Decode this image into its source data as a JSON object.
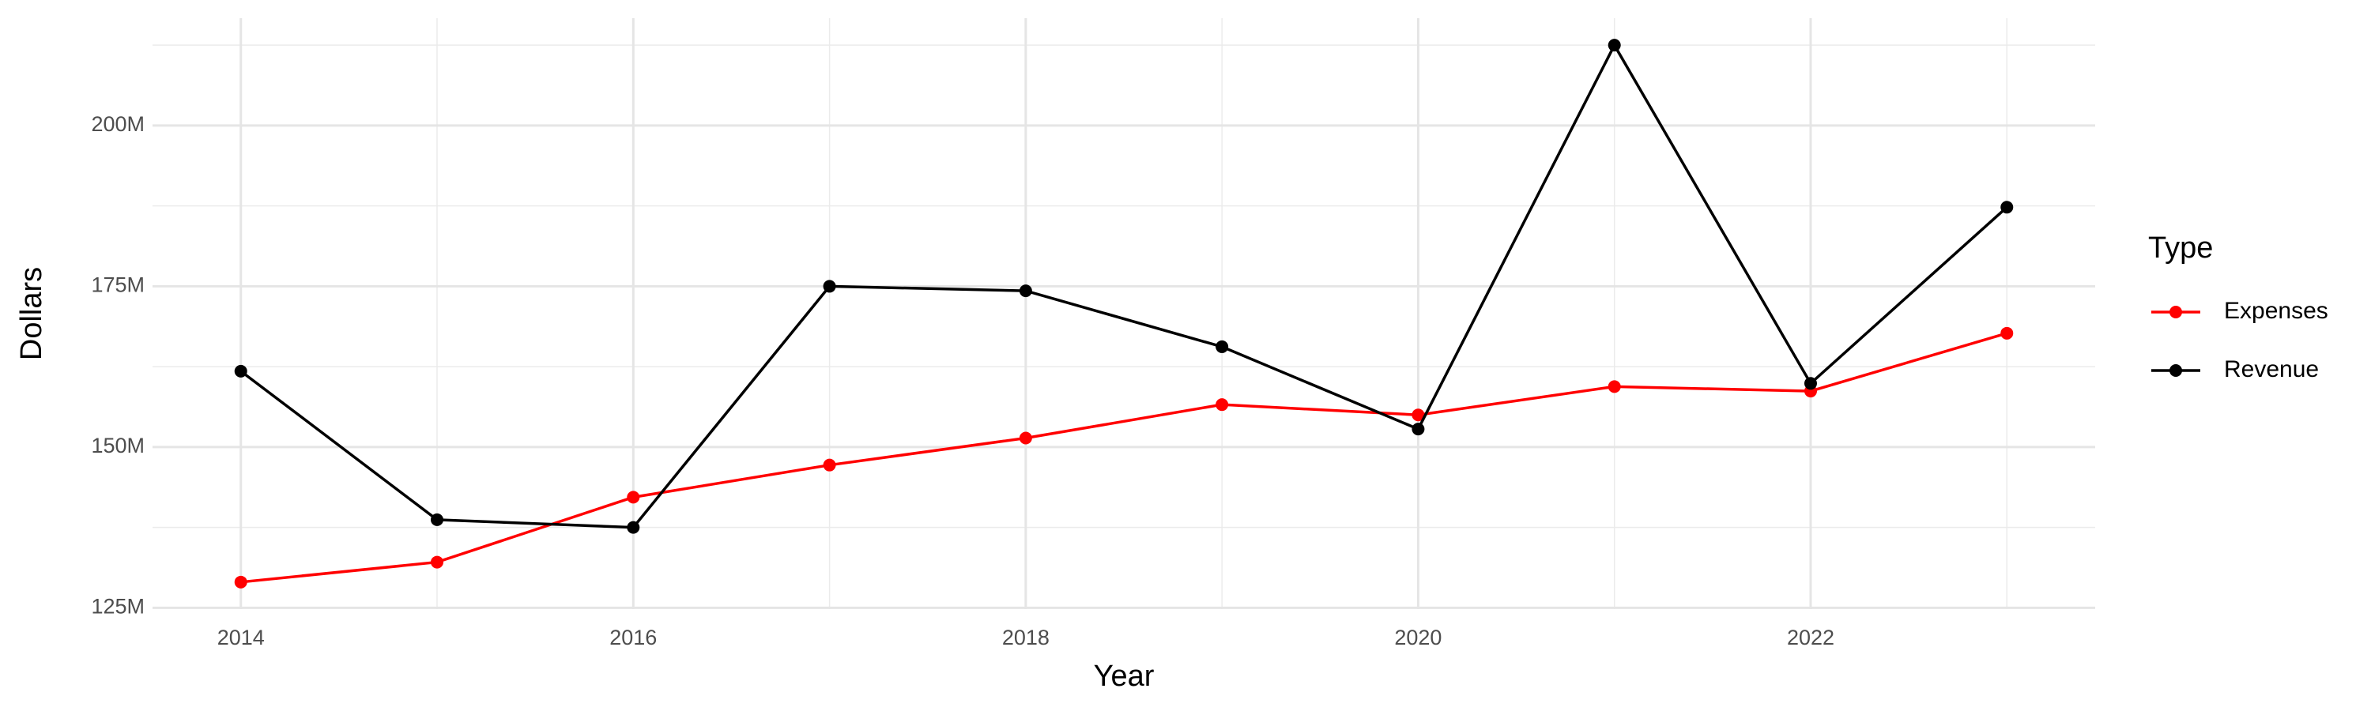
{
  "chart_data": {
    "type": "line",
    "x_label": "Year",
    "y_label": "Dollars",
    "legend_title": "Type",
    "legend_position": "right",
    "x": [
      2014,
      2015,
      2016,
      2017,
      2018,
      2019,
      2020,
      2021,
      2022,
      2023
    ],
    "series": [
      {
        "name": "Expenses",
        "color": "#ff0000",
        "values": [
          129000000,
          132100000,
          142200000,
          147200000,
          151400000,
          156600000,
          155000000,
          159400000,
          158700000,
          167700000
        ]
      },
      {
        "name": "Revenue",
        "color": "#000000",
        "values": [
          161800000,
          138700000,
          137500000,
          175000000,
          174300000,
          165600000,
          152800000,
          212500000,
          159900000,
          187300000
        ]
      }
    ],
    "xlim": [
      2013.55,
      2023.45
    ],
    "xticks": [
      2014,
      2016,
      2018,
      2020,
      2022
    ],
    "x_minor_ticks": [
      2015,
      2017,
      2019,
      2021,
      2023
    ],
    "ylim": [
      124800000,
      216700000
    ],
    "yticks": [
      {
        "value": 125000000,
        "label": "125M"
      },
      {
        "value": 150000000,
        "label": "150M"
      },
      {
        "value": 175000000,
        "label": "175M"
      },
      {
        "value": 200000000,
        "label": "200M"
      }
    ],
    "y_minor_ticks": [
      137500000,
      162500000,
      187500000,
      212500000
    ],
    "grid": true
  }
}
